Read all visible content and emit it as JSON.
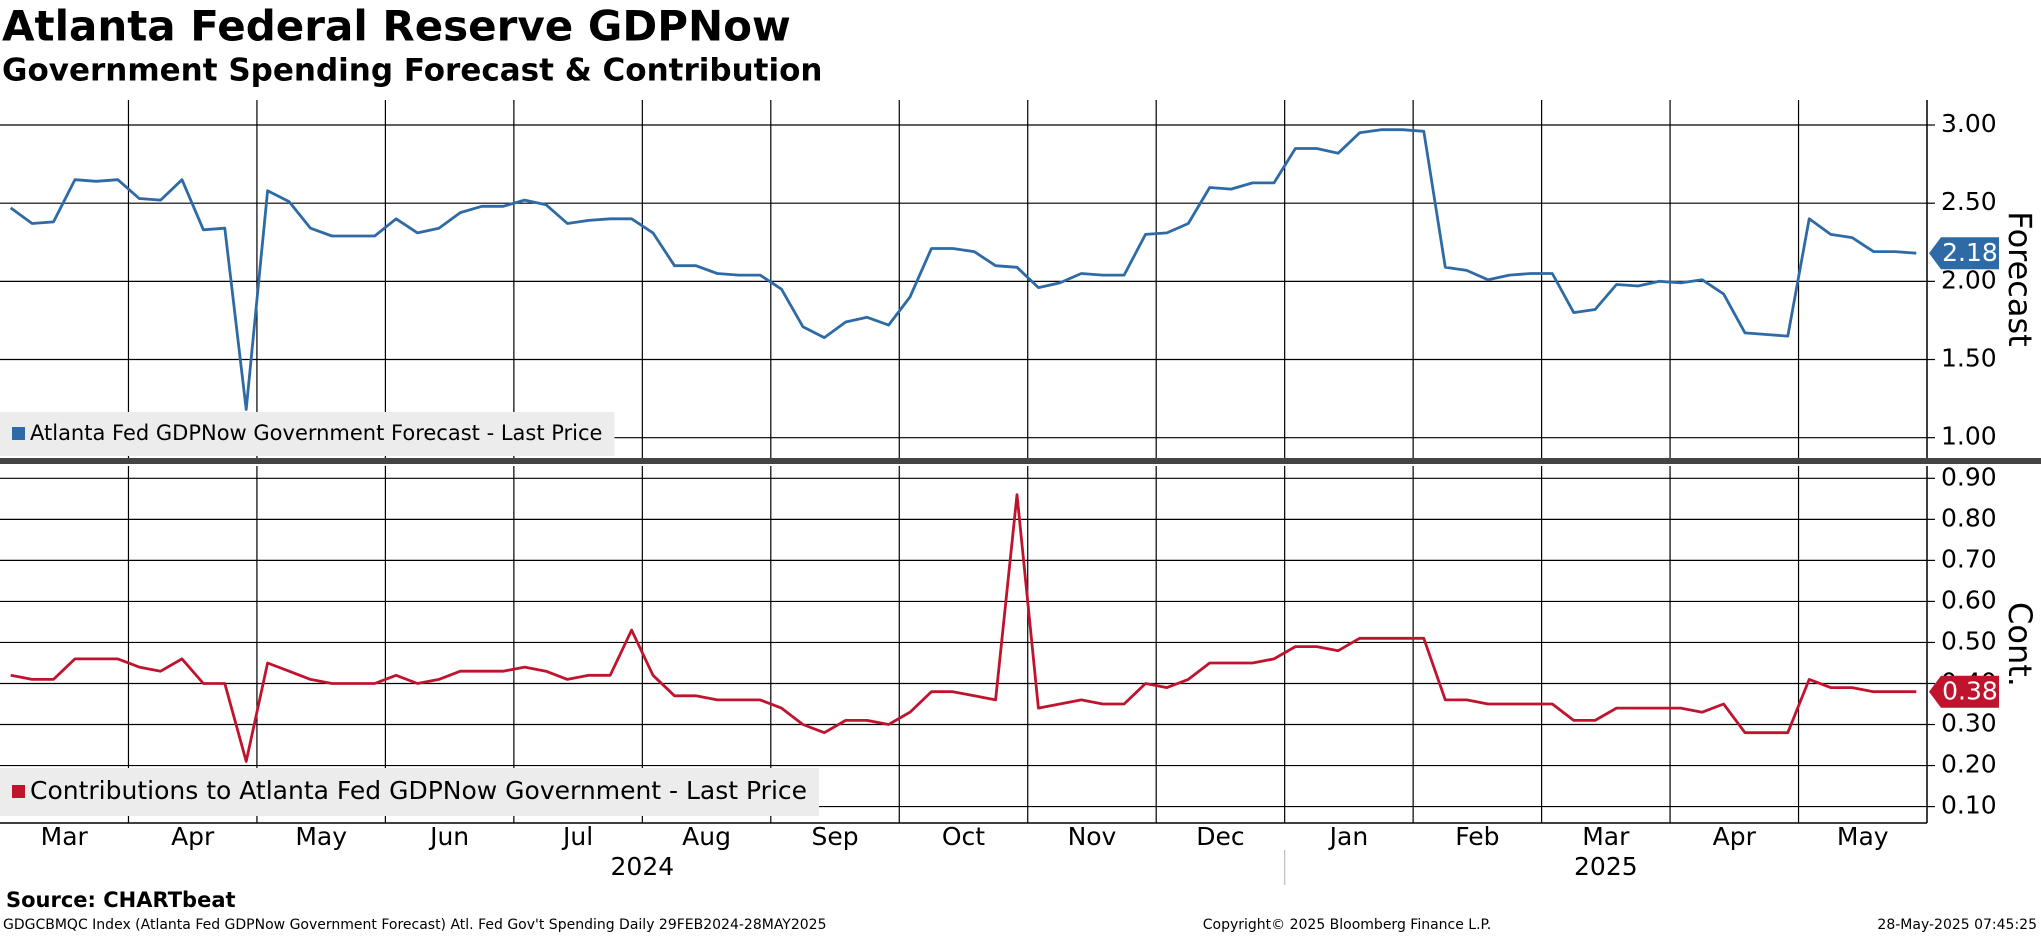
{
  "chart_data": {
    "type": "line",
    "title": "Atlanta Federal Reserve GDPNow",
    "subtitle": "Government Spending Forecast & Contribution",
    "x_groups": [
      {
        "label": "2024",
        "categories": [
          "Mar",
          "Apr",
          "May",
          "Jun",
          "Jul",
          "Aug",
          "Sep",
          "Oct",
          "Nov",
          "Dec"
        ]
      },
      {
        "label": "2025",
        "categories": [
          "Jan",
          "Feb",
          "Mar",
          "Apr",
          "May"
        ]
      }
    ],
    "grid": true,
    "panels": [
      {
        "y_label": "Forecast",
        "ylim": [
          0.87,
          3.16
        ],
        "yticks": [
          {
            "value": 1,
            "label": "1.00"
          },
          {
            "value": 1.5,
            "label": "1.50"
          },
          {
            "value": 2,
            "label": "2.00"
          },
          {
            "value": 2.5,
            "label": "2.50"
          },
          {
            "value": 3,
            "label": "3.00"
          }
        ],
        "series": [
          {
            "name": "Atlanta Fed GDPNow Government Forecast - Last Price",
            "color": "#2e6aa6",
            "values": [
              [
                2.47,
                2.37,
                2.38,
                2.65,
                2.64,
                2.65
              ],
              [
                2.53,
                2.52,
                2.65,
                2.33,
                2.34,
                1.18
              ],
              [
                2.58,
                2.51,
                2.34,
                2.29,
                2.29,
                2.29
              ],
              [
                2.4,
                2.31,
                2.34,
                2.44,
                2.48,
                2.48
              ],
              [
                2.52,
                2.49,
                2.37,
                2.39,
                2.4,
                2.4
              ],
              [
                2.31,
                2.1,
                2.1,
                2.05,
                2.04,
                2.04
              ],
              [
                1.95,
                1.71,
                1.64,
                1.74,
                1.77,
                1.72
              ],
              [
                1.9,
                2.21,
                2.21,
                2.19,
                2.1,
                2.09
              ],
              [
                1.96,
                1.99,
                2.05,
                2.04,
                2.04,
                2.3
              ],
              [
                2.31,
                2.37,
                2.6,
                2.59,
                2.63,
                2.63
              ],
              [
                2.85,
                2.85,
                2.82,
                2.95,
                2.97,
                2.97
              ],
              [
                2.96,
                2.09,
                2.07,
                2.01,
                2.04,
                2.05
              ],
              [
                2.05,
                1.8,
                1.82,
                1.98,
                1.97,
                2.0
              ],
              [
                1.99,
                2.01,
                1.92,
                1.67,
                1.66,
                1.65
              ],
              [
                2.4,
                2.3,
                2.28,
                2.19,
                2.19,
                2.18
              ]
            ]
          }
        ]
      },
      {
        "y_label": "Cont.",
        "ylim": [
          0.06,
          0.93
        ],
        "yticks": [
          {
            "value": 0.1,
            "label": "0.10"
          },
          {
            "value": 0.2,
            "label": "0.20"
          },
          {
            "value": 0.3,
            "label": "0.30"
          },
          {
            "value": 0.4,
            "label": "0.40"
          },
          {
            "value": 0.5,
            "label": "0.50"
          },
          {
            "value": 0.6,
            "label": "0.60"
          },
          {
            "value": 0.7,
            "label": "0.70"
          },
          {
            "value": 0.8,
            "label": "0.80"
          },
          {
            "value": 0.9,
            "label": "0.90"
          }
        ],
        "series": [
          {
            "name": "Contributions to Atlanta Fed GDPNow Government - Last Price",
            "color": "#c0142e",
            "values": [
              [
                0.42,
                0.41,
                0.41,
                0.46,
                0.46,
                0.46
              ],
              [
                0.44,
                0.43,
                0.46,
                0.4,
                0.4,
                0.21
              ],
              [
                0.45,
                0.43,
                0.41,
                0.4,
                0.4,
                0.4
              ],
              [
                0.42,
                0.4,
                0.41,
                0.43,
                0.43,
                0.43
              ],
              [
                0.44,
                0.43,
                0.41,
                0.42,
                0.42,
                0.53
              ],
              [
                0.42,
                0.37,
                0.37,
                0.36,
                0.36,
                0.36
              ],
              [
                0.34,
                0.3,
                0.28,
                0.31,
                0.31,
                0.3
              ],
              [
                0.33,
                0.38,
                0.38,
                0.37,
                0.36,
                0.86
              ],
              [
                0.34,
                0.35,
                0.36,
                0.35,
                0.35,
                0.4
              ],
              [
                0.39,
                0.41,
                0.45,
                0.45,
                0.45,
                0.46
              ],
              [
                0.49,
                0.49,
                0.48,
                0.51,
                0.51,
                0.51
              ],
              [
                0.51,
                0.36,
                0.36,
                0.35,
                0.35,
                0.35
              ],
              [
                0.35,
                0.31,
                0.31,
                0.34,
                0.34,
                0.34
              ],
              [
                0.34,
                0.33,
                0.35,
                0.28,
                0.28,
                0.28
              ],
              [
                0.41,
                0.39,
                0.39,
                0.38,
                0.38,
                0.38
              ]
            ]
          }
        ]
      }
    ],
    "source": "Source: CHARTbeat",
    "footer_left": "GDGCBMQC Index (Atlanta Fed GDPNow Government Forecast) Atl. Fed Gov't Spending  Daily 29FEB2024-28MAY2025",
    "footer_center": "Copyright© 2025 Bloomberg Finance L.P.",
    "footer_right": "28-May-2025 07:45:25"
  }
}
